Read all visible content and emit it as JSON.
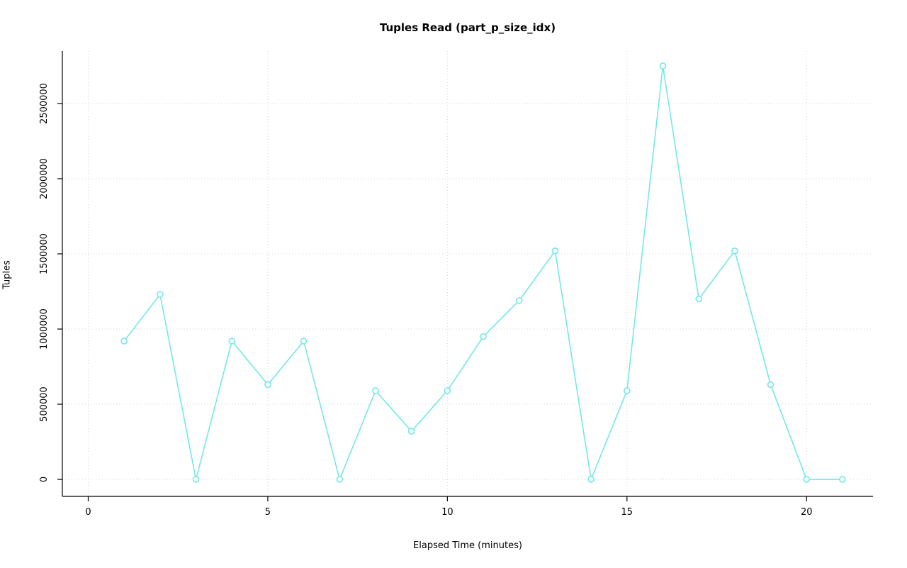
{
  "chart_data": {
    "type": "line",
    "title": "Tuples Read (part_p_size_idx)",
    "xlabel": "Elapsed Time (minutes)",
    "ylabel": "Tuples",
    "x": [
      1,
      2,
      3,
      4,
      5,
      6,
      7,
      8,
      9,
      10,
      11,
      12,
      13,
      14,
      15,
      16,
      17,
      18,
      19,
      20,
      21
    ],
    "values": [
      920000,
      1230000,
      0,
      920000,
      630000,
      920000,
      0,
      590000,
      320000,
      590000,
      950000,
      1190000,
      1520000,
      0,
      590000,
      2750000,
      1200000,
      1520000,
      630000,
      0,
      0
    ],
    "xticks": [
      0,
      5,
      10,
      15,
      20
    ],
    "xtick_labels": [
      "0",
      "5",
      "10",
      "15",
      "20"
    ],
    "yticks": [
      0,
      500000,
      1000000,
      1500000,
      2000000,
      2500000
    ],
    "ytick_labels": [
      "0",
      "500000",
      "1000000",
      "1500000",
      "2000000",
      "2500000"
    ],
    "xlim": [
      -0.72,
      21.85
    ],
    "ylim": [
      -113000,
      2849000
    ],
    "grid": true,
    "legend": "none",
    "line_color": "#76e7e7",
    "marker": "open-circle",
    "marker_fill": "#ffffff",
    "grid_color": "#d4d4d4",
    "axis_color": "#000000",
    "tick_label_color": "#000000"
  }
}
